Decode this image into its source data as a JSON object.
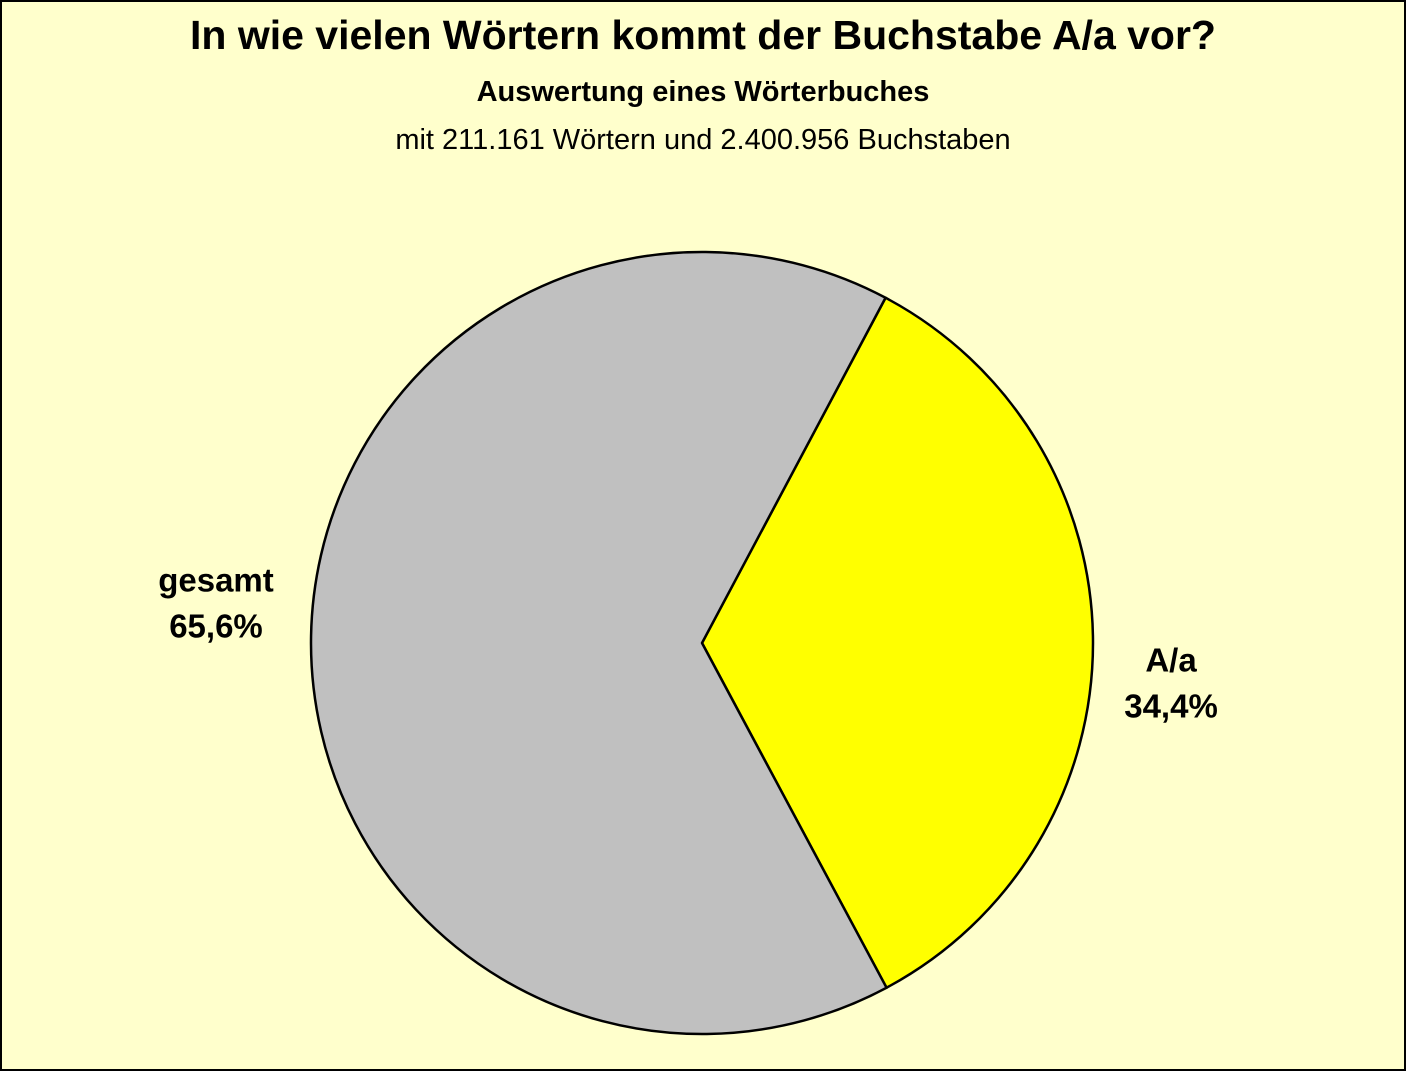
{
  "page": {
    "background_color": "#FFFFCC",
    "border_color": "#000000"
  },
  "header": {
    "title": "In wie vielen Wörtern kommt der Buchstabe A/a vor?",
    "subtitle": "Auswertung eines Wörterbuches",
    "note": "mit 211.161 Wörtern und 2.400.956 Buchstaben"
  },
  "chart_data": {
    "type": "pie",
    "title": "In wie vielen Wörtern kommt der Buchstabe A/a vor?",
    "subtitle": "Auswertung eines Wörterbuches",
    "note": "mit 211.161 Wörtern und 2.400.956 Buchstaben",
    "dictionary_words": "211.161",
    "dictionary_letters": "2.400.956",
    "slices": [
      {
        "name": "A/a",
        "value": 34.4,
        "label": "A/a",
        "percent_label": "34,4%",
        "color": "#FFFF00"
      },
      {
        "name": "gesamt",
        "value": 65.6,
        "label": "gesamt",
        "percent_label": "65,6%",
        "color": "#C0C0C0"
      }
    ],
    "start_angle_deg": 28,
    "stroke_color": "#000000",
    "background_color": "#FFFFCC",
    "legend_position": "none",
    "grid": false
  }
}
